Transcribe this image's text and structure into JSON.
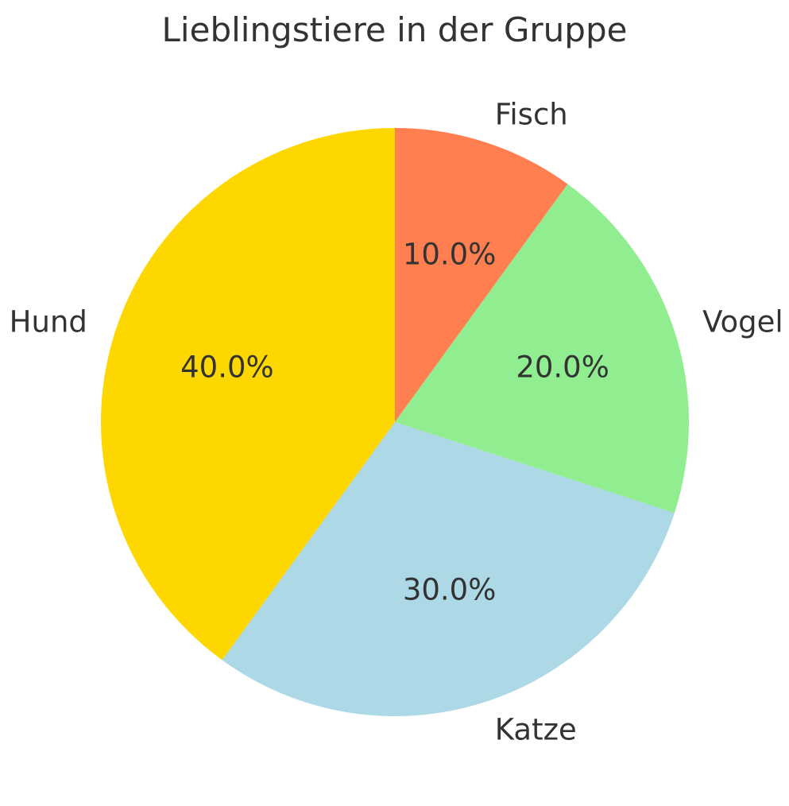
{
  "chart_data": {
    "type": "pie",
    "title": "Lieblingstiere in der Gruppe",
    "labels": [
      "Fisch",
      "Vogel",
      "Katze",
      "Hund"
    ],
    "values": [
      10,
      20,
      30,
      40
    ],
    "pct_labels": [
      "10.0%",
      "20.0%",
      "30.0%",
      "40.0%"
    ],
    "colors": [
      "#FF7F50",
      "#90EE90",
      "#ADD8E6",
      "#FFD700"
    ],
    "start_angle_deg": 90,
    "counterclockwise": false,
    "label_distance": 1.1,
    "pct_distance": 0.6,
    "text_color": "#333333",
    "background": "#FFFFFF",
    "legend": "none"
  }
}
